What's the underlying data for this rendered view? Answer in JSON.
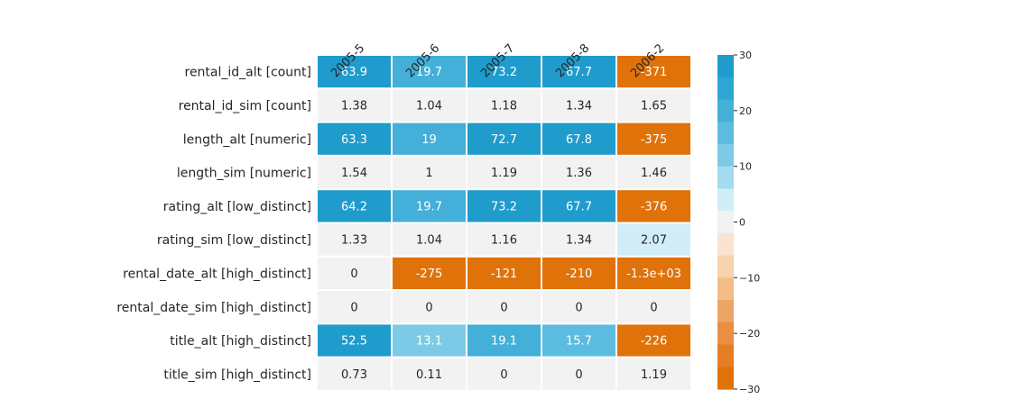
{
  "chart_data": {
    "type": "heatmap",
    "title": "",
    "xlabel": "",
    "ylabel": "",
    "columns": [
      "2005-5",
      "2005-6",
      "2005-7",
      "2005-8",
      "2006-2"
    ],
    "rows": [
      "rental_id_alt [count]",
      "rental_id_sim [count]",
      "length_alt [numeric]",
      "length_sim [numeric]",
      "rating_alt [low_distinct]",
      "rating_sim [low_distinct]",
      "rental_date_alt [high_distinct]",
      "rental_date_sim [high_distinct]",
      "title_alt [high_distinct]",
      "title_sim [high_distinct]"
    ],
    "values": [
      [
        63.9,
        19.7,
        73.2,
        67.7,
        -371
      ],
      [
        1.38,
        1.04,
        1.18,
        1.34,
        1.65
      ],
      [
        63.3,
        19,
        72.7,
        67.8,
        -375
      ],
      [
        1.54,
        1,
        1.19,
        1.36,
        1.46
      ],
      [
        64.2,
        19.7,
        73.2,
        67.7,
        -376
      ],
      [
        1.33,
        1.04,
        1.16,
        1.34,
        2.07
      ],
      [
        0,
        -275,
        -121,
        -210,
        -1300
      ],
      [
        0,
        0,
        0,
        0,
        0
      ],
      [
        52.5,
        13.1,
        19.1,
        15.7,
        -226
      ],
      [
        0.73,
        0.11,
        0,
        0,
        1.19
      ]
    ],
    "cell_labels": [
      [
        "63.9",
        "19.7",
        "73.2",
        "67.7",
        "-371"
      ],
      [
        "1.38",
        "1.04",
        "1.18",
        "1.34",
        "1.65"
      ],
      [
        "63.3",
        "19",
        "72.7",
        "67.8",
        "-375"
      ],
      [
        "1.54",
        "1",
        "1.19",
        "1.36",
        "1.46"
      ],
      [
        "64.2",
        "19.7",
        "73.2",
        "67.7",
        "-376"
      ],
      [
        "1.33",
        "1.04",
        "1.16",
        "1.34",
        "2.07"
      ],
      [
        "0",
        "-275",
        "-121",
        "-210",
        "-1.3e+03"
      ],
      [
        "0",
        "0",
        "0",
        "0",
        "0"
      ],
      [
        "52.5",
        "13.1",
        "19.1",
        "15.7",
        "-226"
      ],
      [
        "0.73",
        "0.11",
        "0",
        "0",
        "1.19"
      ]
    ],
    "colorbar": {
      "vmin": -30,
      "vmax": 30,
      "ticks": [
        30,
        20,
        10,
        0,
        -10,
        -20,
        -30
      ],
      "tick_labels": [
        "30",
        "20",
        "10",
        "0",
        "−10",
        "−20",
        "−30"
      ],
      "bins": [
        "#1f9bcc",
        "#2ea5d2",
        "#44afd8",
        "#5cbcdf",
        "#7ccbe6",
        "#a3dbef",
        "#d1edf7",
        "#f2f2f2",
        "#fae4cf",
        "#f7d3ae",
        "#f3bd85",
        "#eda565",
        "#e98e43",
        "#e57d24",
        "#e0720a"
      ]
    },
    "grid": false,
    "legend": "colorbar-right"
  }
}
